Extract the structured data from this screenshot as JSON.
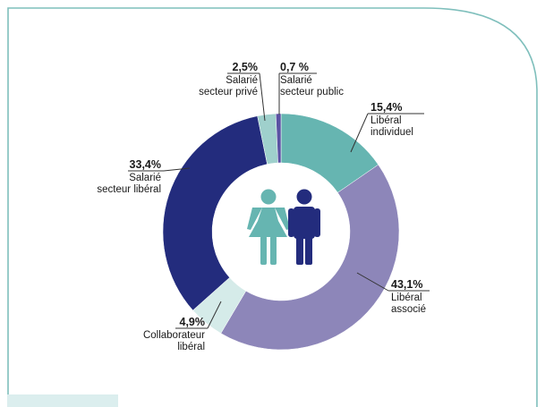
{
  "chart_data": {
    "type": "donut",
    "slices": [
      {
        "key": "liberal_individuel",
        "value": 15.4,
        "pct_label": "15,4%",
        "lines": [
          "Libéral",
          "individuel"
        ],
        "color": "#66b5b1"
      },
      {
        "key": "liberal_associe",
        "value": 43.1,
        "pct_label": "43,1%",
        "lines": [
          "Libéral",
          "associé"
        ],
        "color": "#8d86b9"
      },
      {
        "key": "collaborateur_liberal",
        "value": 4.9,
        "pct_label": "4,9%",
        "lines": [
          "Collaborateur",
          "libéral"
        ],
        "color": "#d5ebe9"
      },
      {
        "key": "salarie_secteur_liberal",
        "value": 33.4,
        "pct_label": "33,4%",
        "lines": [
          "Salarié",
          "secteur libéral"
        ],
        "color": "#232c7d"
      },
      {
        "key": "salarie_secteur_prive",
        "value": 2.5,
        "pct_label": "2,5%",
        "lines": [
          "Salarié",
          "secteur privé"
        ],
        "color": "#9fd0cc"
      },
      {
        "key": "salarie_secteur_public",
        "value": 0.7,
        "pct_label": "0,7 %",
        "lines": [
          "Salarié",
          "secteur public"
        ],
        "color": "#5a52a3"
      }
    ],
    "colors": {
      "frame": "#7fbfbc",
      "leader": "#333333",
      "woman_icon": "#66b5b1",
      "man_icon": "#232c7d"
    },
    "icons": [
      "woman-icon",
      "man-icon"
    ]
  }
}
